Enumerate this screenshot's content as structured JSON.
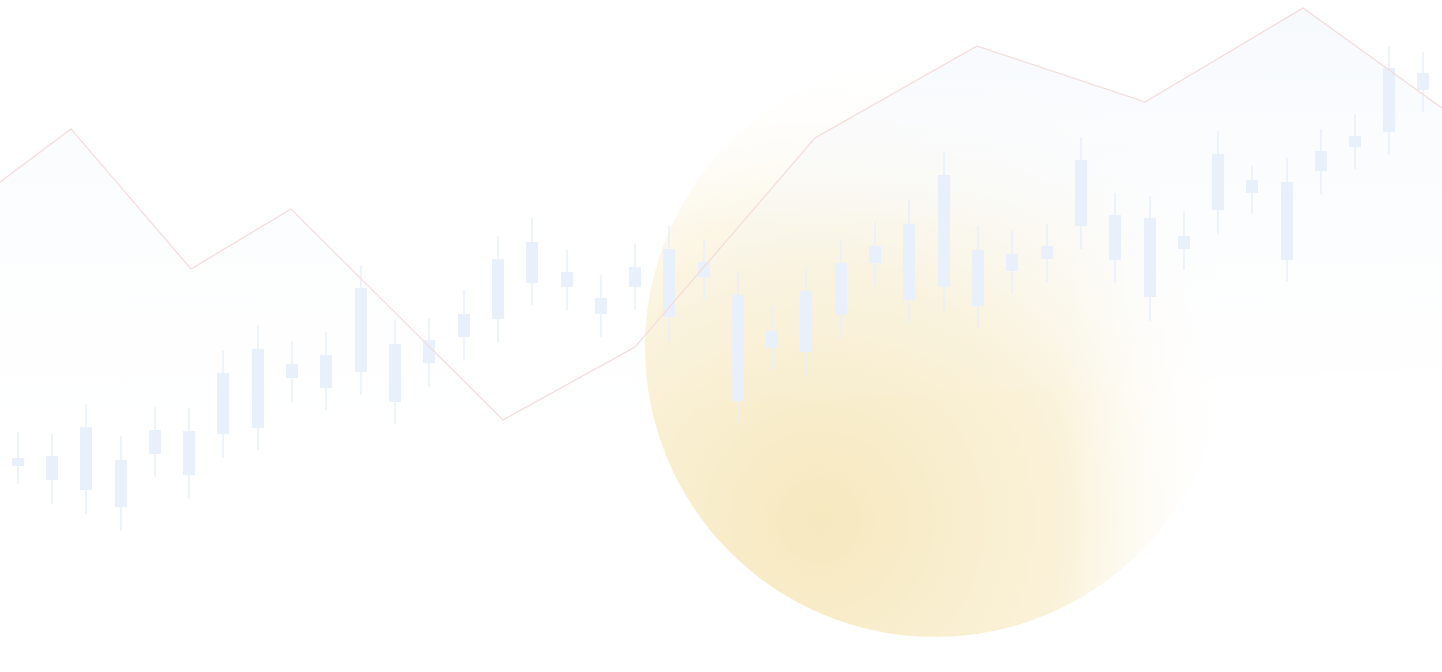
{
  "background": {
    "base_color": "#ffffff",
    "glow_color": "#f6e7bb",
    "area_color": "#eef4fb",
    "candle_color": "#e8f0fc",
    "line_color": "#f6dada"
  },
  "chart_data": {
    "type": "candlestick",
    "title": "",
    "xlabel": "",
    "ylabel": "",
    "ylim": [
      0,
      672
    ],
    "grid": false,
    "legend": "none",
    "candles": [
      {
        "x": 18,
        "open": 214,
        "close": 206,
        "high": 240,
        "low": 188
      },
      {
        "x": 52,
        "open": 192,
        "close": 216,
        "high": 238,
        "low": 168
      },
      {
        "x": 86,
        "open": 182,
        "close": 245,
        "high": 268,
        "low": 158
      },
      {
        "x": 121,
        "open": 212,
        "close": 165,
        "high": 236,
        "low": 141
      },
      {
        "x": 155,
        "open": 218,
        "close": 242,
        "high": 265,
        "low": 195
      },
      {
        "x": 189,
        "open": 197,
        "close": 241,
        "high": 264,
        "low": 173
      },
      {
        "x": 223,
        "open": 238,
        "close": 299,
        "high": 322,
        "low": 214
      },
      {
        "x": 258,
        "open": 244,
        "close": 323,
        "high": 347,
        "low": 222
      },
      {
        "x": 292,
        "open": 294,
        "close": 308,
        "high": 331,
        "low": 270
      },
      {
        "x": 326,
        "open": 317,
        "close": 284,
        "high": 340,
        "low": 262
      },
      {
        "x": 361,
        "open": 300,
        "close": 384,
        "high": 406,
        "low": 277
      },
      {
        "x": 395,
        "open": 328,
        "close": 270,
        "high": 352,
        "low": 248
      },
      {
        "x": 429,
        "open": 309,
        "close": 332,
        "high": 354,
        "low": 285
      },
      {
        "x": 464,
        "open": 335,
        "close": 358,
        "high": 382,
        "low": 312
      },
      {
        "x": 498,
        "open": 353,
        "close": 413,
        "high": 436,
        "low": 330
      },
      {
        "x": 532,
        "open": 389,
        "close": 430,
        "high": 454,
        "low": 367
      },
      {
        "x": 567,
        "open": 385,
        "close": 400,
        "high": 422,
        "low": 362
      },
      {
        "x": 601,
        "open": 358,
        "close": 374,
        "high": 397,
        "low": 335
      },
      {
        "x": 635,
        "open": 405,
        "close": 385,
        "high": 428,
        "low": 362
      },
      {
        "x": 669,
        "open": 423,
        "close": 355,
        "high": 446,
        "low": 330
      },
      {
        "x": 704,
        "open": 395,
        "close": 410,
        "high": 432,
        "low": 372
      },
      {
        "x": 738,
        "open": 271,
        "close": 377,
        "high": 400,
        "low": 249
      },
      {
        "x": 772,
        "open": 324,
        "close": 341,
        "high": 366,
        "low": 302
      },
      {
        "x": 806,
        "open": 320,
        "close": 381,
        "high": 405,
        "low": 296
      },
      {
        "x": 841,
        "open": 357,
        "close": 409,
        "high": 432,
        "low": 334
      },
      {
        "x": 875,
        "open": 409,
        "close": 426,
        "high": 450,
        "low": 387
      },
      {
        "x": 909,
        "open": 372,
        "close": 448,
        "high": 472,
        "low": 349
      },
      {
        "x": 944,
        "open": 385,
        "close": 497,
        "high": 520,
        "low": 361
      },
      {
        "x": 978,
        "open": 422,
        "close": 366,
        "high": 446,
        "low": 344
      },
      {
        "x": 1012,
        "open": 401,
        "close": 418,
        "high": 441,
        "low": 378
      },
      {
        "x": 1047,
        "open": 413,
        "close": 426,
        "high": 448,
        "low": 389
      },
      {
        "x": 1081,
        "open": 446,
        "close": 512,
        "high": 535,
        "low": 423
      },
      {
        "x": 1115,
        "open": 457,
        "close": 412,
        "high": 479,
        "low": 389
      },
      {
        "x": 1150,
        "open": 454,
        "close": 375,
        "high": 476,
        "low": 351
      },
      {
        "x": 1184,
        "open": 423,
        "close": 436,
        "high": 460,
        "low": 402
      },
      {
        "x": 1218,
        "open": 462,
        "close": 518,
        "high": 541,
        "low": 438
      },
      {
        "x": 1252,
        "open": 479,
        "close": 492,
        "high": 506,
        "low": 458
      },
      {
        "x": 1287,
        "open": 490,
        "close": 412,
        "high": 514,
        "low": 390
      },
      {
        "x": 1321,
        "open": 501,
        "close": 521,
        "high": 543,
        "low": 478
      },
      {
        "x": 1355,
        "open": 525,
        "close": 536,
        "high": 558,
        "low": 503
      },
      {
        "x": 1389,
        "open": 540,
        "close": 604,
        "high": 626,
        "low": 517
      },
      {
        "x": 1423,
        "open": 582,
        "close": 599,
        "high": 620,
        "low": 560
      }
    ],
    "trend_line": {
      "x": [
        0,
        71,
        191,
        291,
        503,
        635,
        815,
        977,
        1145,
        1303,
        1442
      ],
      "y": [
        490,
        543,
        403,
        463,
        252,
        325,
        534,
        626,
        570,
        664,
        564
      ]
    },
    "glow_circle": {
      "cx": 935,
      "cy": 325,
      "r": 290
    }
  }
}
